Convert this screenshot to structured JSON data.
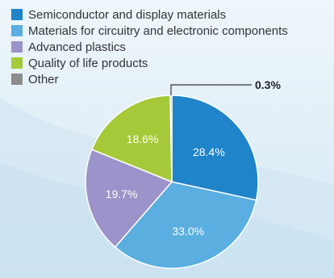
{
  "chart_data": {
    "type": "pie",
    "title": "",
    "legend_position": "top-left",
    "slices": [
      {
        "name": "Semiconductor and display materials",
        "value": 28.4,
        "label": "28.4%",
        "color": "#1f84c9"
      },
      {
        "name": "Materials for circuitry and electronic components",
        "value": 33.0,
        "label": "33.0%",
        "color": "#5aaee0"
      },
      {
        "name": "Advanced plastics",
        "value": 19.7,
        "label": "19.7%",
        "color": "#9b93c9"
      },
      {
        "name": "Quality of life products",
        "value": 18.6,
        "label": "18.6%",
        "color": "#a6c93a"
      },
      {
        "name": "Other",
        "value": 0.3,
        "label": "0.3%",
        "color": "#8c8c8c"
      }
    ]
  }
}
